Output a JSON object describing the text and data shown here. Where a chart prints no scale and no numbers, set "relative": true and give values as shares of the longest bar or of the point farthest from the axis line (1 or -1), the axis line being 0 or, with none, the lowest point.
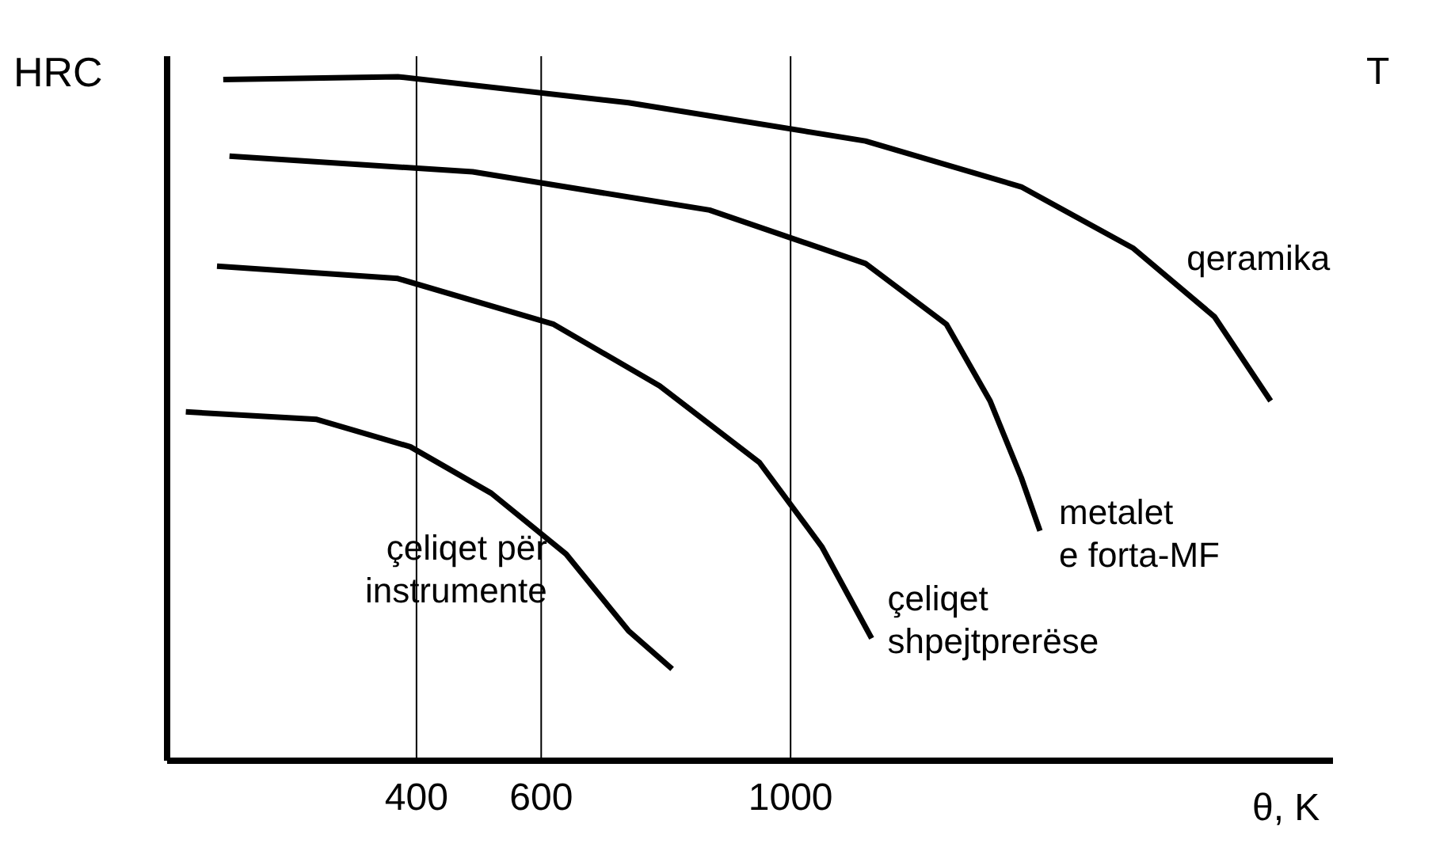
{
  "chart_data": {
    "type": "line",
    "relative": true,
    "ylabel": "HRC",
    "xlabel": "θ, K",
    "annotations": [
      "T"
    ],
    "xlim": [
      0,
      1870
    ],
    "xticks": [
      400,
      600,
      1000
    ],
    "grid": "x",
    "series": [
      {
        "name": "qeramika",
        "color": "#000000",
        "x": [
          90,
          370,
          740,
          1120,
          1370,
          1550,
          1680,
          1770
        ],
        "values": [
          0.996,
          1.0,
          0.962,
          0.906,
          0.839,
          0.749,
          0.649,
          0.526
        ]
      },
      {
        "name": "metalet\ne forta-MF",
        "color": "#000000",
        "x": [
          100,
          490,
          870,
          1120,
          1250,
          1320,
          1370,
          1400
        ],
        "values": [
          0.884,
          0.861,
          0.805,
          0.727,
          0.638,
          0.526,
          0.414,
          0.336
        ]
      },
      {
        "name": "çeliqet\nshpejtprerëse",
        "color": "#000000",
        "x": [
          80,
          370,
          620,
          790,
          950,
          1050,
          1130
        ],
        "values": [
          0.723,
          0.705,
          0.638,
          0.548,
          0.436,
          0.313,
          0.179
        ]
      },
      {
        "name": "çeliqet për\ninstrumente",
        "color": "#000000",
        "x": [
          30,
          240,
          390,
          520,
          640,
          740,
          810
        ],
        "values": [
          0.51,
          0.499,
          0.459,
          0.391,
          0.302,
          0.19,
          0.134
        ]
      }
    ]
  }
}
